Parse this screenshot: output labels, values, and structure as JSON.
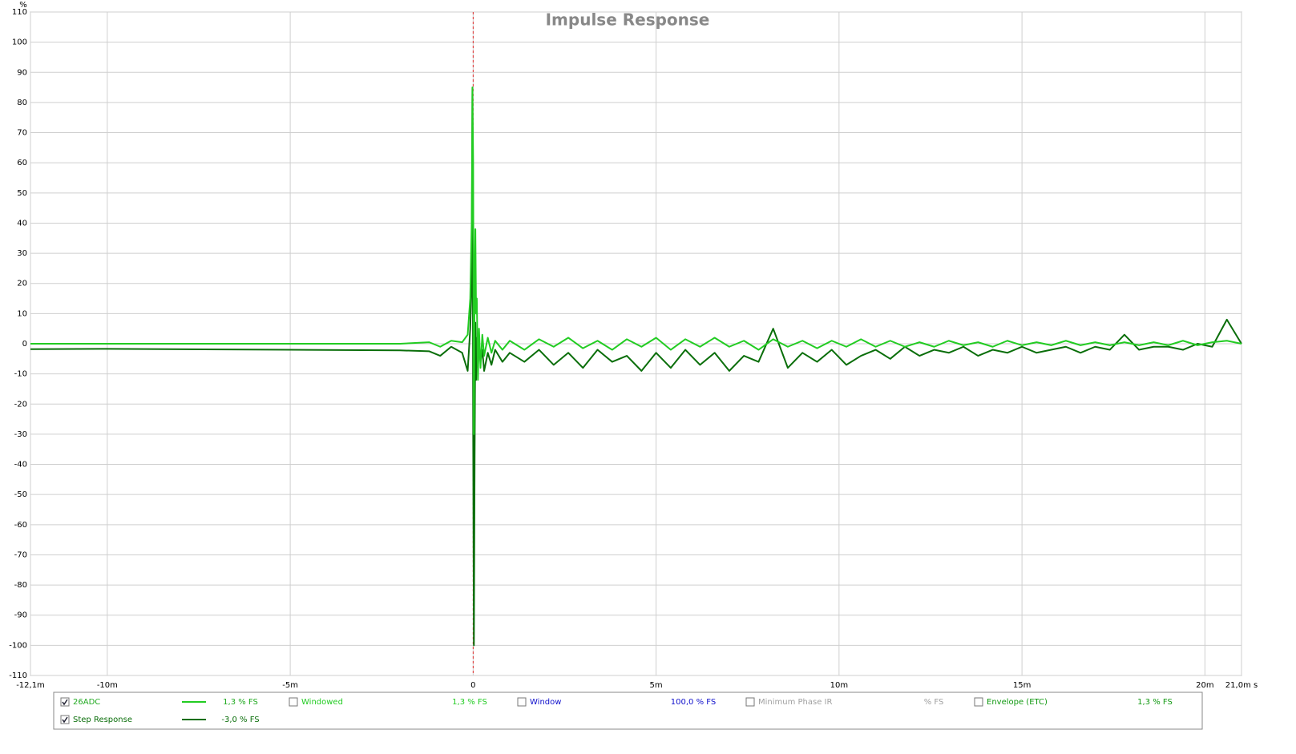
{
  "chart_data": {
    "type": "line",
    "title": "Impulse Response",
    "y_label": "%",
    "x": [
      -12.1,
      -10,
      -5,
      -2,
      -1.2,
      -0.9,
      -0.6,
      -0.3,
      -0.15,
      -0.08,
      -0.04,
      -0.02,
      0,
      0.02,
      0.04,
      0.06,
      0.08,
      0.1,
      0.13,
      0.16,
      0.2,
      0.25,
      0.3,
      0.4,
      0.5,
      0.6,
      0.8,
      1.0,
      1.4,
      1.8,
      2.2,
      2.6,
      3.0,
      3.4,
      3.8,
      4.2,
      4.6,
      5.0,
      5.4,
      5.8,
      6.2,
      6.6,
      7.0,
      7.4,
      7.8,
      8.2,
      8.6,
      9.0,
      9.4,
      9.8,
      10.2,
      10.6,
      11.0,
      11.4,
      11.8,
      12.2,
      12.6,
      13.0,
      13.4,
      13.8,
      14.2,
      14.6,
      15.0,
      15.4,
      15.8,
      16.2,
      16.6,
      17.0,
      17.4,
      17.8,
      18.2,
      18.6,
      19.0,
      19.4,
      19.8,
      20.2,
      20.6,
      21.0
    ],
    "series": [
      {
        "name": "26ADC",
        "color": "#22cc22",
        "checked": true,
        "readout": "1,3 % FS",
        "values": [
          0,
          0,
          0,
          0,
          0.5,
          -1,
          1,
          0.5,
          3,
          15,
          40,
          85,
          60,
          -30,
          20,
          38,
          10,
          15,
          -12,
          5,
          -8,
          3,
          -4,
          2,
          -3,
          1,
          -2,
          1,
          -2,
          1.5,
          -1,
          2,
          -1.5,
          1,
          -2,
          1.5,
          -1,
          2,
          -2,
          1.5,
          -1,
          2,
          -1,
          1,
          -2,
          1.5,
          -1,
          1,
          -1.5,
          1,
          -1,
          1.5,
          -1,
          1,
          -1,
          0.5,
          -1,
          1,
          -0.5,
          0.5,
          -1,
          1,
          -0.5,
          0.5,
          -0.5,
          1,
          -0.5,
          0.5,
          -0.5,
          0.5,
          -0.5,
          0.5,
          -0.5,
          1,
          -0.5,
          0.5,
          1,
          0
        ]
      },
      {
        "name": "Step Response",
        "color": "#0a6e0a",
        "checked": true,
        "readout": "-3,0 % FS",
        "values": [
          -1.8,
          -1.7,
          -2,
          -2.2,
          -2.5,
          -4,
          -1,
          -3,
          -9,
          5,
          20,
          85,
          -30,
          -100,
          -38,
          7,
          -12,
          2,
          -8,
          0,
          -6,
          -2,
          -9,
          -3,
          -7,
          -2,
          -6,
          -3,
          -6,
          -2,
          -7,
          -3,
          -8,
          -2,
          -6,
          -4,
          -9,
          -3,
          -8,
          -2,
          -7,
          -3,
          -9,
          -4,
          -6,
          5,
          -8,
          -3,
          -6,
          -2,
          -7,
          -4,
          -2,
          -5,
          -1,
          -4,
          -2,
          -3,
          -1,
          -4,
          -2,
          -3,
          -1,
          -3,
          -2,
          -1,
          -3,
          -1,
          -2,
          3,
          -2,
          -1,
          -1,
          -2,
          0,
          -1,
          8,
          0
        ]
      }
    ],
    "xlim": [
      -12.1,
      21.0
    ],
    "xticks": [
      {
        "value": -12.1,
        "label": "-12,1m"
      },
      {
        "value": -10,
        "label": "-10m"
      },
      {
        "value": -5,
        "label": "-5m"
      },
      0,
      {
        "value": 5,
        "label": "5m"
      },
      {
        "value": 10,
        "label": "10m"
      },
      {
        "value": 15,
        "label": "15m"
      },
      {
        "value": 20,
        "label": "20m"
      },
      {
        "value": 21.0,
        "label": "21,0m s"
      }
    ],
    "ylim": [
      -110,
      110
    ],
    "yticks": [
      -110,
      -100,
      -90,
      -80,
      -70,
      -60,
      -50,
      -40,
      -30,
      -20,
      -10,
      0,
      10,
      20,
      30,
      40,
      50,
      60,
      70,
      80,
      90,
      100,
      110
    ],
    "grid": true,
    "cursor_x": 0
  },
  "panel": {
    "items": [
      {
        "label": "Windowed",
        "readout": "1,3 % FS",
        "color": "#22cc22"
      },
      {
        "label": "Window",
        "readout": "100,0 % FS",
        "color": "#1010cc"
      },
      {
        "label": "Minimum Phase IR",
        "readout": "% FS",
        "color": "#a0a0a0"
      },
      {
        "label": "Envelope (ETC)",
        "readout": "1,3 % FS",
        "color": "#119911"
      }
    ]
  }
}
